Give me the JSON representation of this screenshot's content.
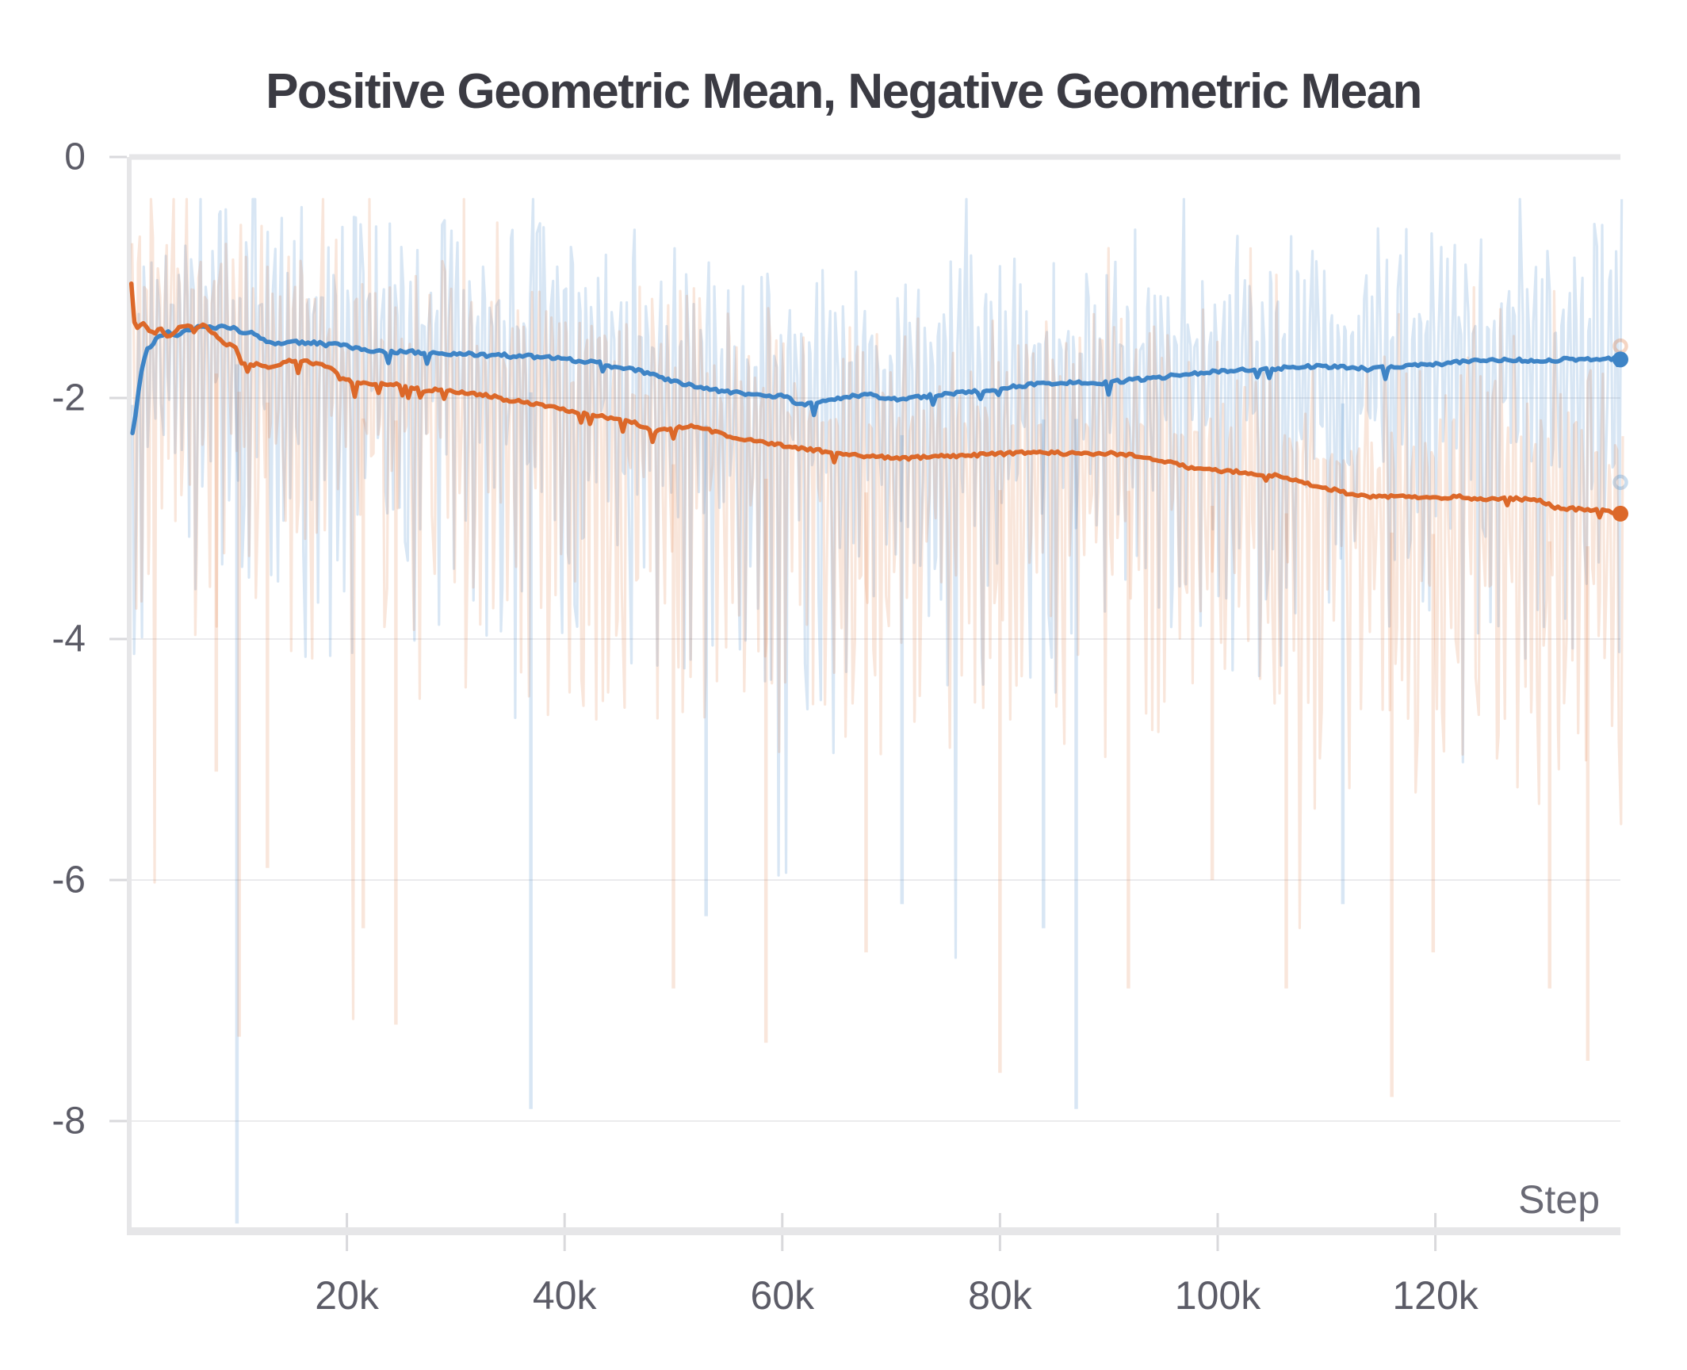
{
  "title": "Positive Geometric Mean, Negative Geometric Mean",
  "chart_data": {
    "type": "line",
    "title": "Positive Geometric Mean, Negative Geometric Mean",
    "xlabel": "Step",
    "ylabel": "",
    "xlim": [
      0,
      137000
    ],
    "ylim": [
      -8.9,
      0
    ],
    "grid": true,
    "legend_position": "none",
    "x_ticks": [
      {
        "value": 20000,
        "label": "20k"
      },
      {
        "value": 40000,
        "label": "40k"
      },
      {
        "value": 60000,
        "label": "60k"
      },
      {
        "value": 80000,
        "label": "80k"
      },
      {
        "value": 100000,
        "label": "100k"
      },
      {
        "value": 120000,
        "label": "120k"
      }
    ],
    "y_ticks": [
      {
        "value": 0,
        "label": "0"
      },
      {
        "value": -2,
        "label": "-2"
      },
      {
        "value": -4,
        "label": "-4"
      },
      {
        "value": -6,
        "label": "-6"
      },
      {
        "value": -8,
        "label": "-8"
      }
    ],
    "series": [
      {
        "name": "Positive Geometric Mean",
        "color": "#3e84c6",
        "raw_opacity": 0.2,
        "end_point": {
          "step": 137000,
          "value": -1.68
        },
        "raw_end_point": {
          "step": 137000,
          "value": -2.7
        },
        "smoothed": [
          [
            300,
            -2.3
          ],
          [
            600,
            -2.12
          ],
          [
            900,
            -1.92
          ],
          [
            1200,
            -1.72
          ],
          [
            1600,
            -1.6
          ],
          [
            2500,
            -1.51
          ],
          [
            3500,
            -1.45
          ],
          [
            4500,
            -1.48
          ],
          [
            5600,
            -1.43
          ],
          [
            6700,
            -1.4
          ],
          [
            7500,
            -1.42
          ],
          [
            8700,
            -1.41
          ],
          [
            9900,
            -1.42
          ],
          [
            10300,
            -1.46
          ],
          [
            11200,
            -1.45
          ],
          [
            12000,
            -1.49
          ],
          [
            12800,
            -1.54
          ],
          [
            14000,
            -1.56
          ],
          [
            15200,
            -1.53
          ],
          [
            16400,
            -1.55
          ],
          [
            17000,
            -1.54
          ],
          [
            18200,
            -1.56
          ],
          [
            19500,
            -1.55
          ],
          [
            20700,
            -1.59
          ],
          [
            21300,
            -1.6
          ],
          [
            22600,
            -1.61
          ],
          [
            24400,
            -1.62
          ],
          [
            25600,
            -1.61
          ],
          [
            26900,
            -1.63
          ],
          [
            28100,
            -1.62
          ],
          [
            29300,
            -1.64
          ],
          [
            30600,
            -1.63
          ],
          [
            31800,
            -1.64
          ],
          [
            33000,
            -1.65
          ],
          [
            34200,
            -1.64
          ],
          [
            35500,
            -1.66
          ],
          [
            36700,
            -1.65
          ],
          [
            38000,
            -1.67
          ],
          [
            39200,
            -1.66
          ],
          [
            40400,
            -1.68
          ],
          [
            41700,
            -1.7
          ],
          [
            42900,
            -1.7
          ],
          [
            44100,
            -1.74
          ],
          [
            45300,
            -1.75
          ],
          [
            46600,
            -1.77
          ],
          [
            47800,
            -1.8
          ],
          [
            50000,
            -1.86
          ],
          [
            52500,
            -1.92
          ],
          [
            55000,
            -1.95
          ],
          [
            57500,
            -1.97
          ],
          [
            60300,
            -1.99
          ],
          [
            61200,
            -2.04
          ],
          [
            62100,
            -2.05
          ],
          [
            64000,
            -2.02
          ],
          [
            65200,
            -2.0
          ],
          [
            67700,
            -1.97
          ],
          [
            69500,
            -2.0
          ],
          [
            71300,
            -2.01
          ],
          [
            72600,
            -1.99
          ],
          [
            75000,
            -1.97
          ],
          [
            77500,
            -1.95
          ],
          [
            80000,
            -1.93
          ],
          [
            81800,
            -1.9
          ],
          [
            83700,
            -1.88
          ],
          [
            86100,
            -1.87
          ],
          [
            88600,
            -1.88
          ],
          [
            91000,
            -1.86
          ],
          [
            93500,
            -1.84
          ],
          [
            95400,
            -1.82
          ],
          [
            98500,
            -1.79
          ],
          [
            101500,
            -1.77
          ],
          [
            104600,
            -1.76
          ],
          [
            107700,
            -1.74
          ],
          [
            110700,
            -1.74
          ],
          [
            113800,
            -1.76
          ],
          [
            116900,
            -1.74
          ],
          [
            120000,
            -1.72
          ],
          [
            123000,
            -1.69
          ],
          [
            126100,
            -1.68
          ],
          [
            129100,
            -1.69
          ],
          [
            132200,
            -1.68
          ],
          [
            135300,
            -1.67
          ],
          [
            137000,
            -1.68
          ]
        ]
      },
      {
        "name": "Negative Geometric Mean",
        "color": "#dc6829",
        "raw_opacity": 0.17,
        "end_point": {
          "step": 137000,
          "value": -2.96
        },
        "raw_end_point": {
          "step": 137000,
          "value": -1.57
        },
        "smoothed": [
          [
            200,
            -1.05
          ],
          [
            350,
            -1.26
          ],
          [
            500,
            -1.38
          ],
          [
            800,
            -1.42
          ],
          [
            1200,
            -1.37
          ],
          [
            1700,
            -1.44
          ],
          [
            2300,
            -1.46
          ],
          [
            2900,
            -1.42
          ],
          [
            3500,
            -1.49
          ],
          [
            4100,
            -1.46
          ],
          [
            4800,
            -1.4
          ],
          [
            5500,
            -1.39
          ],
          [
            6200,
            -1.41
          ],
          [
            7000,
            -1.4
          ],
          [
            7600,
            -1.45
          ],
          [
            8200,
            -1.52
          ],
          [
            9000,
            -1.56
          ],
          [
            9800,
            -1.57
          ],
          [
            10300,
            -1.7
          ],
          [
            11000,
            -1.73
          ],
          [
            11700,
            -1.72
          ],
          [
            12500,
            -1.74
          ],
          [
            13500,
            -1.73
          ],
          [
            14500,
            -1.69
          ],
          [
            15500,
            -1.68
          ],
          [
            16500,
            -1.7
          ],
          [
            17500,
            -1.72
          ],
          [
            18500,
            -1.74
          ],
          [
            19300,
            -1.83
          ],
          [
            20500,
            -1.87
          ],
          [
            21500,
            -1.87
          ],
          [
            22500,
            -1.89
          ],
          [
            24000,
            -1.88
          ],
          [
            25500,
            -1.9
          ],
          [
            27000,
            -1.94
          ],
          [
            28500,
            -1.93
          ],
          [
            30000,
            -1.95
          ],
          [
            31500,
            -1.96
          ],
          [
            33000,
            -1.98
          ],
          [
            34500,
            -2.01
          ],
          [
            36000,
            -2.03
          ],
          [
            37500,
            -2.05
          ],
          [
            39000,
            -2.07
          ],
          [
            40500,
            -2.11
          ],
          [
            42000,
            -2.13
          ],
          [
            43500,
            -2.15
          ],
          [
            45000,
            -2.18
          ],
          [
            46500,
            -2.21
          ],
          [
            48000,
            -2.28
          ],
          [
            50000,
            -2.25
          ],
          [
            51500,
            -2.23
          ],
          [
            53000,
            -2.26
          ],
          [
            55500,
            -2.33
          ],
          [
            57500,
            -2.36
          ],
          [
            59500,
            -2.38
          ],
          [
            61000,
            -2.41
          ],
          [
            63000,
            -2.43
          ],
          [
            65000,
            -2.46
          ],
          [
            67000,
            -2.48
          ],
          [
            69000,
            -2.49
          ],
          [
            71000,
            -2.5
          ],
          [
            73500,
            -2.49
          ],
          [
            76000,
            -2.48
          ],
          [
            78500,
            -2.47
          ],
          [
            81000,
            -2.46
          ],
          [
            83500,
            -2.45
          ],
          [
            86000,
            -2.46
          ],
          [
            88500,
            -2.47
          ],
          [
            90500,
            -2.46
          ],
          [
            93000,
            -2.48
          ],
          [
            95500,
            -2.53
          ],
          [
            97500,
            -2.58
          ],
          [
            99000,
            -2.59
          ],
          [
            101000,
            -2.61
          ],
          [
            103000,
            -2.62
          ],
          [
            105000,
            -2.64
          ],
          [
            106500,
            -2.66
          ],
          [
            108000,
            -2.7
          ],
          [
            109500,
            -2.74
          ],
          [
            111000,
            -2.77
          ],
          [
            112500,
            -2.8
          ],
          [
            114000,
            -2.82
          ],
          [
            115500,
            -2.82
          ],
          [
            117000,
            -2.81
          ],
          [
            118500,
            -2.82
          ],
          [
            120000,
            -2.83
          ],
          [
            122000,
            -2.82
          ],
          [
            124000,
            -2.84
          ],
          [
            126000,
            -2.83
          ],
          [
            128000,
            -2.84
          ],
          [
            129500,
            -2.85
          ],
          [
            131000,
            -2.91
          ],
          [
            132500,
            -2.92
          ],
          [
            134000,
            -2.93
          ],
          [
            135500,
            -2.93
          ],
          [
            137000,
            -2.96
          ]
        ]
      }
    ],
    "raw_noise": {
      "seed": 1337,
      "columns": 440,
      "start_step": 300,
      "up_base": 0.22,
      "up_span": 0.95,
      "down_base": 0.28,
      "down_span": 2.3,
      "top_clamp": -0.35,
      "bottom_clamp": -8.85
    },
    "deep_spikes": [
      {
        "series": 1,
        "step": 8000,
        "value": -5.1
      },
      {
        "series": 0,
        "step": 9900,
        "value": -8.85
      },
      {
        "series": 1,
        "step": 10100,
        "value": -7.3
      },
      {
        "series": 1,
        "step": 12700,
        "value": -5.9
      },
      {
        "series": 1,
        "step": 21500,
        "value": -6.4
      },
      {
        "series": 1,
        "step": 24500,
        "value": -7.2
      },
      {
        "series": 0,
        "step": 36900,
        "value": -7.9
      },
      {
        "series": 1,
        "step": 50000,
        "value": -6.9
      },
      {
        "series": 0,
        "step": 53000,
        "value": -6.3
      },
      {
        "series": 1,
        "step": 58500,
        "value": -7.35
      },
      {
        "series": 1,
        "step": 67700,
        "value": -6.6
      },
      {
        "series": 0,
        "step": 71000,
        "value": -6.2
      },
      {
        "series": 1,
        "step": 80000,
        "value": -7.6
      },
      {
        "series": 0,
        "step": 84000,
        "value": -6.4
      },
      {
        "series": 0,
        "step": 87000,
        "value": -7.9
      },
      {
        "series": 1,
        "step": 91800,
        "value": -6.9
      },
      {
        "series": 1,
        "step": 99500,
        "value": -6.0
      },
      {
        "series": 1,
        "step": 106300,
        "value": -6.9
      },
      {
        "series": 0,
        "step": 111500,
        "value": -6.2
      },
      {
        "series": 1,
        "step": 116000,
        "value": -7.8
      },
      {
        "series": 1,
        "step": 119800,
        "value": -6.6
      },
      {
        "series": 1,
        "step": 130500,
        "value": -6.9
      },
      {
        "series": 1,
        "step": 134000,
        "value": -7.5
      }
    ],
    "style": {
      "grid_color": "#ebebed",
      "zero_line_color": "#e6e6e8",
      "axis_color": "#e6e6e8",
      "tick_color": "#d9d9dc",
      "tick_label_color": "#5c5c67",
      "title_color": "#3b3b43"
    }
  }
}
